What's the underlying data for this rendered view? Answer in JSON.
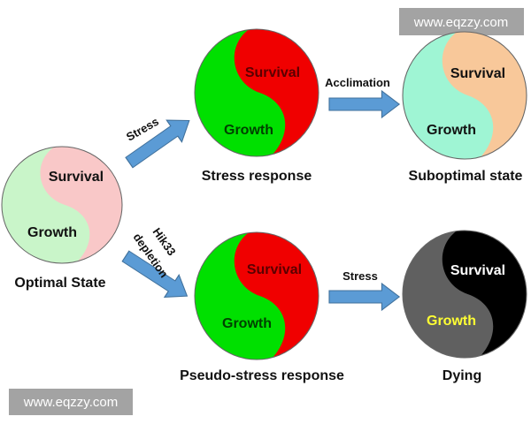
{
  "watermark": "www.eqzzy.com",
  "states": {
    "optimal": {
      "caption": "Optimal State",
      "survival": "Survival",
      "growth": "Growth",
      "colors": {
        "growth": "#c9f5c9",
        "survival": "#f9c8c8"
      }
    },
    "stress_response": {
      "caption": "Stress response",
      "survival": "Survival",
      "growth": "Growth",
      "colors": {
        "growth": "#00e000",
        "survival": "#f00000"
      }
    },
    "suboptimal": {
      "caption": "Suboptimal state",
      "survival": "Survival",
      "growth": "Growth",
      "colors": {
        "growth": "#9ff5d4",
        "survival": "#f8c89a"
      }
    },
    "pseudo_stress": {
      "caption": "Pseudo-stress response",
      "survival": "Survival",
      "growth": "Growth",
      "colors": {
        "growth": "#00e000",
        "survival": "#f00000"
      }
    },
    "dying": {
      "caption": "Dying",
      "survival": "Survival",
      "growth": "Growth",
      "colors": {
        "growth": "#606060",
        "survival": "#000000"
      }
    }
  },
  "arrows": {
    "stress_top": "Stress",
    "acclimation": "Acclimation",
    "hik33_line1": "Hik33",
    "hik33_line2": "depletion",
    "stress_bottom": "Stress"
  },
  "arrow_color": "#5b9bd5"
}
